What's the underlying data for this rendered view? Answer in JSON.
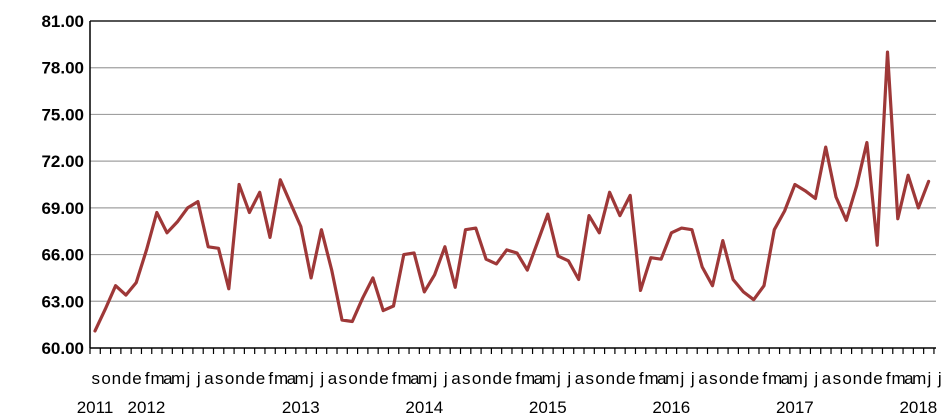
{
  "chart_data": {
    "type": "line",
    "title": "",
    "xlabel": "",
    "ylabel": "",
    "ylim": [
      60,
      81
    ],
    "yticks": [
      "81.00",
      "78.00",
      "75.00",
      "72.00",
      "69.00",
      "66.00",
      "63.00",
      "60.00"
    ],
    "grid": "horizontal",
    "legend": "none",
    "line_color": "#9e3838",
    "gridline_color": "#a0a0a0",
    "month_labels": [
      "s",
      "o",
      "n",
      "d",
      "e",
      "f",
      "m",
      "a",
      "m",
      "j",
      "j",
      "a",
      "s",
      "o",
      "n",
      "d",
      "e",
      "f",
      "m",
      "a",
      "m",
      "j",
      "j",
      "a",
      "s",
      "o",
      "n",
      "d",
      "e",
      "f",
      "m",
      "a",
      "m",
      "j",
      "j",
      "a",
      "s",
      "o",
      "n",
      "d",
      "e",
      "f",
      "m",
      "a",
      "m",
      "j",
      "j",
      "a",
      "s",
      "o",
      "n",
      "d",
      "e",
      "f",
      "m",
      "a",
      "m",
      "j",
      "j",
      "a",
      "s",
      "o",
      "n",
      "d",
      "e",
      "f",
      "m",
      "a",
      "m",
      "j",
      "j",
      "a",
      "s",
      "o",
      "n",
      "d",
      "e",
      "f",
      "m",
      "a",
      "m",
      "j",
      "j",
      "a",
      "s",
      "o",
      "n",
      "d",
      "e",
      "f",
      "m",
      "a",
      "m",
      "j"
    ],
    "year_labels": [
      {
        "label": "2011",
        "index": 0
      },
      {
        "label": "2012",
        "index": 5
      },
      {
        "label": "2013",
        "index": 20
      },
      {
        "label": "2014",
        "index": 32
      },
      {
        "label": "2015",
        "index": 44
      },
      {
        "label": "2016",
        "index": 56
      },
      {
        "label": "2017",
        "index": 68
      },
      {
        "label": "2018",
        "index": 80
      }
    ],
    "series": [
      {
        "values": [
          61.1,
          62.5,
          64.0,
          63.4,
          64.2,
          66.3,
          68.7,
          67.4,
          68.1,
          69.0,
          69.4,
          66.5,
          66.4,
          63.8,
          70.5,
          68.7,
          70.0,
          67.1,
          70.8,
          69.3,
          67.8,
          64.5,
          67.6,
          65.0,
          61.8,
          61.7,
          63.2,
          64.5,
          62.4,
          62.7,
          66.0,
          66.1,
          63.6,
          64.7,
          66.5,
          63.9,
          67.6,
          67.7,
          65.7,
          65.4,
          66.3,
          66.1,
          65.0,
          66.8,
          68.6,
          65.9,
          65.6,
          64.4,
          68.5,
          67.4,
          70.0,
          68.5,
          69.8,
          63.7,
          65.8,
          65.7,
          67.4,
          67.7,
          67.6,
          65.2,
          64.0,
          66.9,
          64.4,
          63.6,
          63.1,
          64.0,
          67.6,
          68.8,
          70.5,
          70.1,
          69.6,
          72.9,
          69.7,
          68.2,
          70.4,
          73.2,
          66.6,
          79.0,
          68.3,
          71.1,
          69.0,
          70.7
        ]
      }
    ]
  }
}
